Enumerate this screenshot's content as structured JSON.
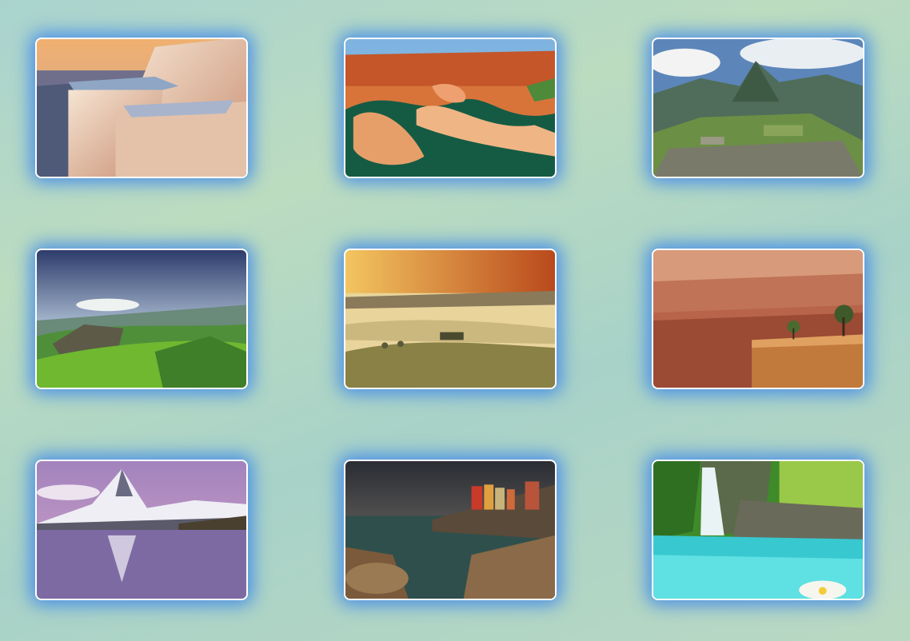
{
  "gallery": {
    "photos": [
      {
        "name": "white-travertine-terraces"
      },
      {
        "name": "canyon-river-bend"
      },
      {
        "name": "mountain-ruins-citadel"
      },
      {
        "name": "green-highland-valley"
      },
      {
        "name": "misty-golden-hills"
      },
      {
        "name": "canyon-cliff-overlook"
      },
      {
        "name": "snowy-peak-lake-reflection"
      },
      {
        "name": "coastal-village-rocks"
      },
      {
        "name": "tropical-waterfall-lagoon"
      }
    ]
  }
}
